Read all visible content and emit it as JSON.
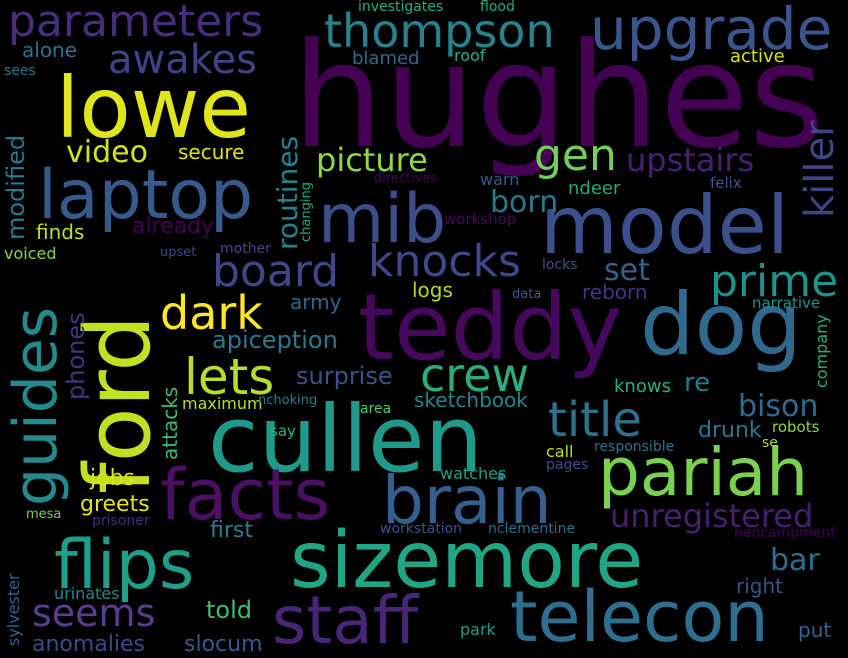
{
  "background": "#000000",
  "words": [
    {
      "text": "hughes",
      "color": "#440154"
    },
    {
      "text": "teddy",
      "color": "#46085c"
    },
    {
      "text": "cullen",
      "color": "#1f9a8a"
    },
    {
      "text": "model",
      "color": "#3b4f8a"
    },
    {
      "text": "sizemore",
      "color": "#21a585"
    },
    {
      "text": "dog",
      "color": "#31688e"
    },
    {
      "text": "telecon",
      "color": "#2e6e8e"
    },
    {
      "text": "staff",
      "color": "#482677"
    },
    {
      "text": "facts",
      "color": "#4b0f63"
    },
    {
      "text": "brain",
      "color": "#355f8d"
    },
    {
      "text": "pariah",
      "color": "#7ad151"
    },
    {
      "text": "lowe",
      "color": "#e0e51c"
    },
    {
      "text": "laptop",
      "color": "#38598c"
    },
    {
      "text": "flips",
      "color": "#1f9e89"
    },
    {
      "text": "mib",
      "color": "#3d4d8a"
    },
    {
      "text": "ford",
      "color": "#c2df23"
    },
    {
      "text": "guides",
      "color": "#238a8d"
    },
    {
      "text": "upgrade",
      "color": "#3a548c"
    },
    {
      "text": "title",
      "color": "#2c728e"
    },
    {
      "text": "thompson",
      "color": "#26828e"
    },
    {
      "text": "parameters",
      "color": "#472d7b"
    },
    {
      "text": "knocks",
      "color": "#3e4989"
    },
    {
      "text": "prime",
      "color": "#20928c"
    },
    {
      "text": "crew",
      "color": "#28ae80"
    },
    {
      "text": "lets",
      "color": "#b5de2b"
    },
    {
      "text": "board",
      "color": "#3f4788"
    },
    {
      "text": "dark",
      "color": "#fde725"
    },
    {
      "text": "killer",
      "color": "#404588"
    },
    {
      "text": "gen",
      "color": "#73d056"
    },
    {
      "text": "awakes",
      "color": "#424086"
    },
    {
      "text": "seems",
      "color": "#5c3c8e"
    },
    {
      "text": "unregistered",
      "color": "#481f70"
    },
    {
      "text": "upstairs",
      "color": "#482071"
    },
    {
      "text": "picture",
      "color": "#8fd744"
    },
    {
      "text": "video",
      "color": "#d2e21b"
    },
    {
      "text": "born",
      "color": "#2a788e"
    },
    {
      "text": "routines",
      "color": "#25838e"
    },
    {
      "text": "bison",
      "color": "#306a8e"
    },
    {
      "text": "set",
      "color": "#34618d"
    },
    {
      "text": "bar",
      "color": "#2d708e"
    },
    {
      "text": "surprise",
      "color": "#3b528b"
    },
    {
      "text": "modified",
      "color": "#2a788e"
    },
    {
      "text": "apiception",
      "color": "#29798e"
    },
    {
      "text": "phones",
      "color": "#46327e"
    },
    {
      "text": "jobs",
      "color": "#dde318"
    },
    {
      "text": "greets",
      "color": "#e5e419"
    },
    {
      "text": "first",
      "color": "#277f8e"
    },
    {
      "text": "told",
      "color": "#3dbc74"
    },
    {
      "text": "slocum",
      "color": "#375a8c"
    },
    {
      "text": "anomalies",
      "color": "#3f4889"
    },
    {
      "text": "secure",
      "color": "#dde318"
    },
    {
      "text": "sketchbook",
      "color": "#25858e"
    },
    {
      "text": "re",
      "color": "#2a768e"
    },
    {
      "text": "attacks",
      "color": "#3fbc73"
    },
    {
      "text": "finds",
      "color": "#bddf26"
    },
    {
      "text": "already",
      "color": "#440154"
    },
    {
      "text": "drunk",
      "color": "#2a768e"
    },
    {
      "text": "army",
      "color": "#31668e"
    },
    {
      "text": "logs",
      "color": "#a8db34"
    },
    {
      "text": "reborn",
      "color": "#453581"
    },
    {
      "text": "right",
      "color": "#3b528b"
    },
    {
      "text": "put",
      "color": "#33638d"
    },
    {
      "text": "maximum",
      "color": "#b8de29"
    },
    {
      "text": "knows",
      "color": "#2ab07f"
    },
    {
      "text": "call",
      "color": "#c0df25"
    },
    {
      "text": "alone",
      "color": "#2c718e"
    },
    {
      "text": "blamed",
      "color": "#31678e"
    },
    {
      "text": "voiced",
      "color": "#89d548"
    },
    {
      "text": "sylvester",
      "color": "#34618d"
    },
    {
      "text": "company",
      "color": "#2ab07f"
    },
    {
      "text": "ndeer",
      "color": "#23a983"
    },
    {
      "text": "warn",
      "color": "#38598c"
    },
    {
      "text": "active",
      "color": "#d8e219"
    },
    {
      "text": "roof",
      "color": "#29af7f"
    },
    {
      "text": "investigates",
      "color": "#26ad81"
    },
    {
      "text": "flood",
      "color": "#23a983"
    },
    {
      "text": "sees",
      "color": "#2c728e"
    },
    {
      "text": "directives",
      "color": "#440154"
    },
    {
      "text": "workshop",
      "color": "#46075a"
    },
    {
      "text": "changing",
      "color": "#22a785"
    },
    {
      "text": "upset",
      "color": "#3f4788"
    },
    {
      "text": "mother",
      "color": "#3f4788"
    },
    {
      "text": "felix",
      "color": "#39568c"
    },
    {
      "text": "locks",
      "color": "#3b528b"
    },
    {
      "text": "data",
      "color": "#39568c"
    },
    {
      "text": "narrative",
      "color": "#21918c"
    },
    {
      "text": "nchoking",
      "color": "#277f8e"
    },
    {
      "text": "area",
      "color": "#52c569"
    },
    {
      "text": "say",
      "color": "#2fb47c"
    },
    {
      "text": "responsible",
      "color": "#2c728e"
    },
    {
      "text": "robots",
      "color": "#90d743"
    },
    {
      "text": "se",
      "color": "#9fda3a"
    },
    {
      "text": "watches",
      "color": "#1fa088"
    },
    {
      "text": "pages",
      "color": "#3e4a89"
    },
    {
      "text": "mesa",
      "color": "#70cf57"
    },
    {
      "text": "prisoner",
      "color": "#472a7a"
    },
    {
      "text": "workstation",
      "color": "#3b528b"
    },
    {
      "text": "nclementine",
      "color": "#2d708e"
    },
    {
      "text": "nencampment",
      "color": "#440154"
    },
    {
      "text": "urinates",
      "color": "#24868e"
    },
    {
      "text": "park",
      "color": "#1f9a8a"
    }
  ]
}
